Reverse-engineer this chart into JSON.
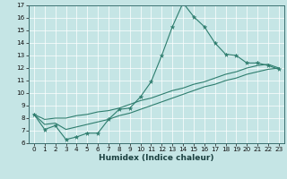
{
  "title": "",
  "xlabel": "Humidex (Indice chaleur)",
  "xlim": [
    -0.5,
    23.5
  ],
  "ylim": [
    6,
    17
  ],
  "xtick_labels": [
    "0",
    "1",
    "2",
    "3",
    "4",
    "5",
    "6",
    "7",
    "8",
    "9",
    "10",
    "11",
    "12",
    "13",
    "14",
    "15",
    "16",
    "17",
    "18",
    "19",
    "20",
    "21",
    "22",
    "23"
  ],
  "xtick_vals": [
    0,
    1,
    2,
    3,
    4,
    5,
    6,
    7,
    8,
    9,
    10,
    11,
    12,
    13,
    14,
    15,
    16,
    17,
    18,
    19,
    20,
    21,
    22,
    23
  ],
  "ytick_vals": [
    6,
    7,
    8,
    9,
    10,
    11,
    12,
    13,
    14,
    15,
    16,
    17
  ],
  "bg_color": "#c5e5e5",
  "line_color": "#2e7d6e",
  "grid_color": "#ffffff",
  "line1_x": [
    0,
    1,
    2,
    3,
    4,
    5,
    6,
    7,
    8,
    9,
    10,
    11,
    12,
    13,
    14,
    15,
    16,
    17,
    18,
    19,
    20,
    21,
    22,
    23
  ],
  "line1_y": [
    8.3,
    7.1,
    7.4,
    6.3,
    6.5,
    6.8,
    6.8,
    7.9,
    8.7,
    8.8,
    9.7,
    10.9,
    13.0,
    15.3,
    17.2,
    16.1,
    15.3,
    14.0,
    13.1,
    13.0,
    12.4,
    12.4,
    12.2,
    11.9
  ],
  "line2_x": [
    0,
    1,
    2,
    3,
    4,
    5,
    6,
    7,
    8,
    9,
    10,
    11,
    12,
    13,
    14,
    15,
    16,
    17,
    18,
    19,
    20,
    21,
    22,
    23
  ],
  "line2_y": [
    8.3,
    7.9,
    8.0,
    8.0,
    8.2,
    8.3,
    8.5,
    8.6,
    8.8,
    9.1,
    9.4,
    9.6,
    9.9,
    10.2,
    10.4,
    10.7,
    10.9,
    11.2,
    11.5,
    11.7,
    12.0,
    12.2,
    12.3,
    12.0
  ],
  "line3_x": [
    0,
    1,
    2,
    3,
    4,
    5,
    6,
    7,
    8,
    9,
    10,
    11,
    12,
    13,
    14,
    15,
    16,
    17,
    18,
    19,
    20,
    21,
    22,
    23
  ],
  "line3_y": [
    8.3,
    7.5,
    7.6,
    7.1,
    7.3,
    7.5,
    7.7,
    7.9,
    8.2,
    8.4,
    8.7,
    9.0,
    9.3,
    9.6,
    9.9,
    10.2,
    10.5,
    10.7,
    11.0,
    11.2,
    11.5,
    11.7,
    11.9,
    12.0
  ],
  "marker": "*",
  "marker_size": 3.5,
  "linewidth": 0.8,
  "tick_fontsize": 5.2,
  "xlabel_fontsize": 6.5
}
